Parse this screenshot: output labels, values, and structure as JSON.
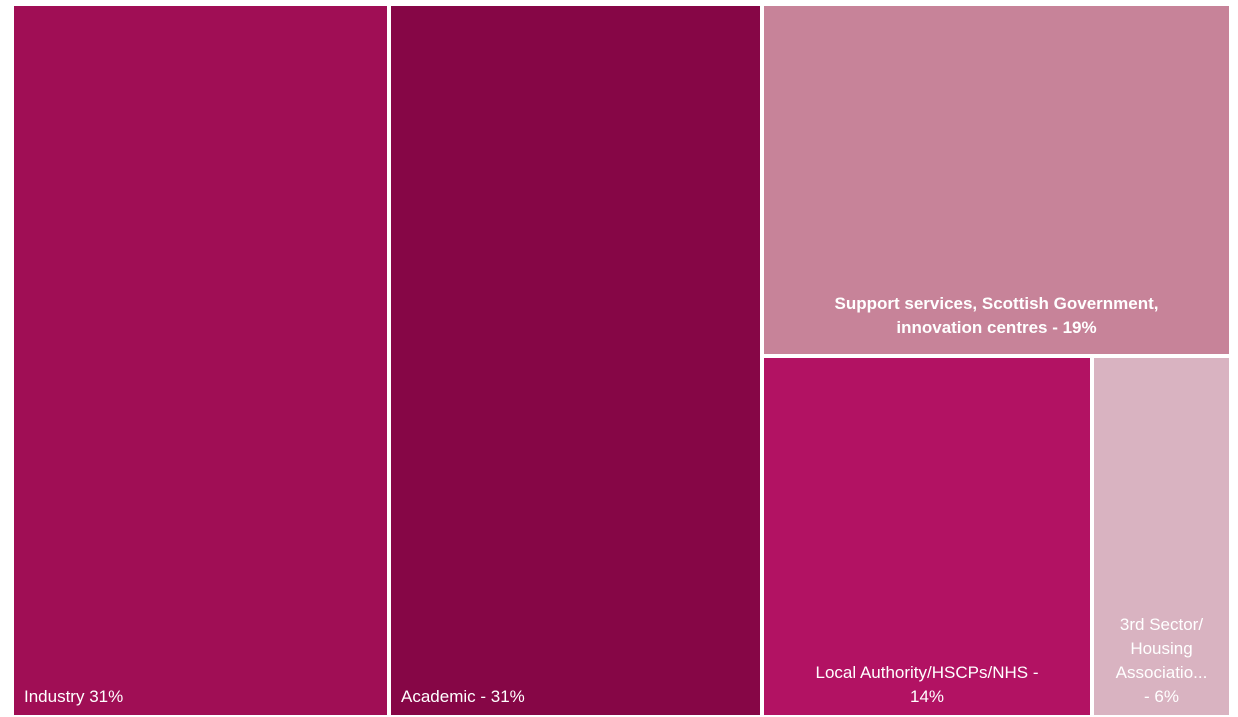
{
  "chart_data": {
    "type": "treemap",
    "items": [
      {
        "label": "Industry 31%",
        "label_lines": [
          "Industry 31%"
        ],
        "value": 31,
        "color": "#a00e55"
      },
      {
        "label": "Academic   - 31%",
        "label_lines": [
          "Academic   - 31%"
        ],
        "value": 31,
        "color": "#860646"
      },
      {
        "label": "Support services, Scottish Government, innovation centres - 19%",
        "label_lines": [
          "Support services, Scottish Government,",
          "innovation centres - 19%"
        ],
        "value": 19,
        "color": "#c78399"
      },
      {
        "label": "Local Authority/HSCPs/NHS - 14%",
        "label_lines": [
          "Local Authority/HSCPs/NHS -",
          "14%"
        ],
        "value": 14,
        "color": "#b21263"
      },
      {
        "label": "3rd Sector/ Housing Associatio... - 6%",
        "label_lines": [
          "3rd Sector/",
          "Housing",
          "Associatio...",
          "- 6%"
        ],
        "value": 6,
        "color": "#d9b3c1"
      }
    ]
  }
}
